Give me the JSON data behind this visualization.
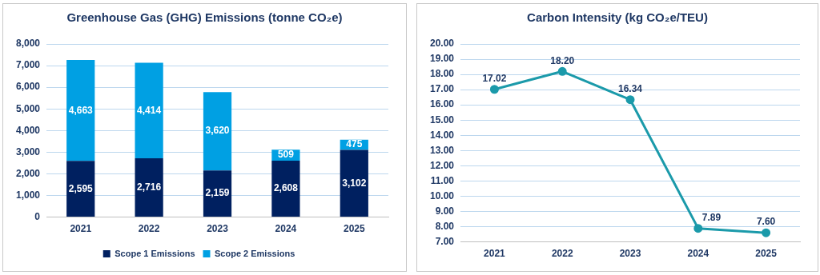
{
  "chart_data": [
    {
      "type": "bar",
      "title": "Greenhouse Gas (GHG) Emissions (tonne CO₂e)",
      "categories": [
        "2021",
        "2022",
        "2023",
        "2024",
        "2025"
      ],
      "stacked": true,
      "series": [
        {
          "name": "Scope 1 Emissions",
          "color": "#002060",
          "values": [
            2595,
            2716,
            2159,
            2608,
            3102
          ],
          "value_labels": [
            "2,595",
            "2,716",
            "2,159",
            "2,608",
            "3,102"
          ]
        },
        {
          "name": "Scope 2 Emissions",
          "color": "#00a0e3",
          "values": [
            4663,
            4414,
            3620,
            509,
            475
          ],
          "value_labels": [
            "4,663",
            "4,414",
            "3,620",
            "509",
            "475"
          ]
        }
      ],
      "ylim": [
        0,
        8000
      ],
      "yticks": [
        0,
        {
          "value": 1000,
          "label": "1,000"
        },
        {
          "value": 2000,
          "label": "2,000"
        },
        {
          "value": 3000,
          "label": "3,000"
        },
        {
          "value": 4000,
          "label": "4,000"
        },
        {
          "value": 5000,
          "label": "5,000"
        },
        {
          "value": 6000,
          "label": "6,000"
        },
        {
          "value": 7000,
          "label": "7,000"
        },
        {
          "value": 8000,
          "label": "8,000"
        }
      ],
      "grid": "y",
      "legend": "bottom"
    },
    {
      "type": "line",
      "title": "Carbon Intensity (kg CO₂e/TEU)",
      "categories": [
        "2021",
        "2022",
        "2023",
        "2024",
        "2025"
      ],
      "series": [
        {
          "color": "#1b9aaa",
          "values": [
            17.02,
            18.2,
            16.34,
            7.89,
            7.6
          ],
          "value_labels": [
            "17.02",
            "18.20",
            "16.34",
            "7.89",
            "7.60"
          ]
        }
      ],
      "ylim": [
        7,
        20
      ],
      "yticks": [
        {
          "value": 7,
          "label": "7.00"
        },
        {
          "value": 8,
          "label": "8.00"
        },
        {
          "value": 9,
          "label": "9.00"
        },
        {
          "value": 10,
          "label": "10.00"
        },
        {
          "value": 11,
          "label": "11.00"
        },
        {
          "value": 12,
          "label": "12.00"
        },
        {
          "value": 13,
          "label": "13.00"
        },
        {
          "value": 14,
          "label": "14.00"
        },
        {
          "value": 15,
          "label": "15.00"
        },
        {
          "value": 16,
          "label": "16.00"
        },
        {
          "value": 17,
          "label": "17.00"
        },
        {
          "value": 18,
          "label": "18.00"
        },
        {
          "value": 19,
          "label": "19.00"
        },
        {
          "value": 20,
          "label": "20.00"
        }
      ],
      "grid": "y",
      "marker": "circle",
      "legend": false
    }
  ]
}
